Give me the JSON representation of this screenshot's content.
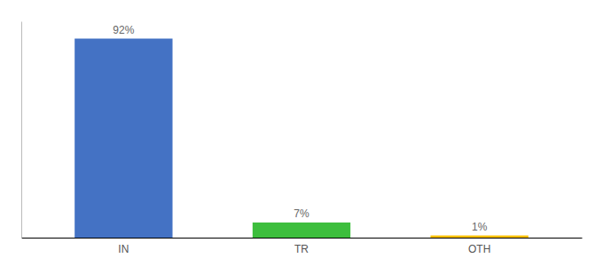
{
  "chart_data": {
    "type": "bar",
    "categories": [
      "IN",
      "TR",
      "OTH"
    ],
    "values": [
      92,
      7,
      1
    ],
    "value_labels": [
      "92%",
      "7%",
      "1%"
    ],
    "colors": [
      "#4472C4",
      "#3DBE3D",
      "#FFC000"
    ],
    "ylim": [
      0,
      100
    ],
    "data_labels": true,
    "tick_labels": "x"
  }
}
